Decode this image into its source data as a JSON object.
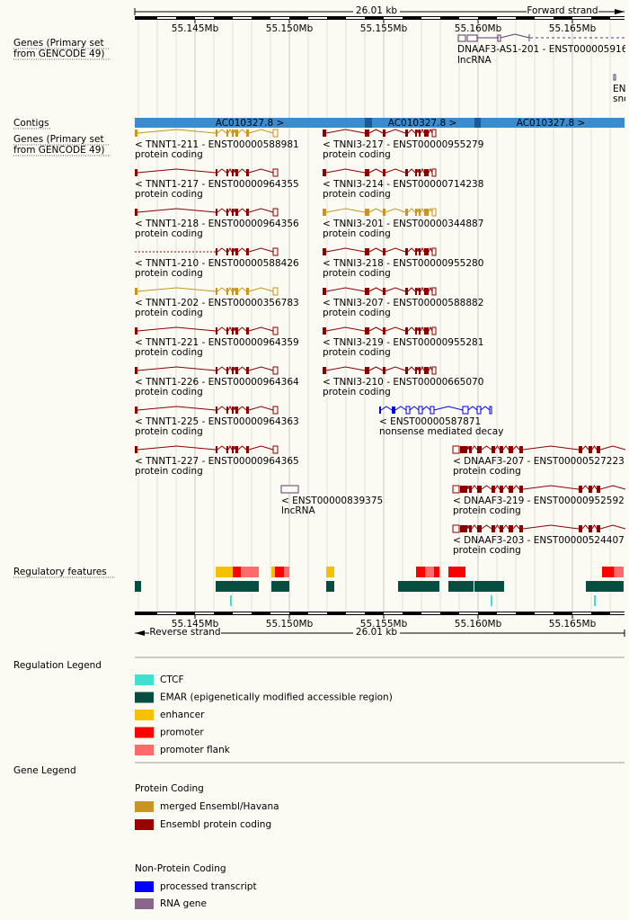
{
  "top_ruler": {
    "length": "26.01 kb",
    "strand": "Forward strand",
    "ticks": [
      "55.145Mb",
      "55.150Mb",
      "55.155Mb",
      "55.160Mb",
      "55.165Mb"
    ]
  },
  "tracks": {
    "genes_top": [
      "Genes (Primary set",
      "from GENCODE 49)"
    ],
    "contigs": "Contigs",
    "genes": [
      "Genes (Primary set",
      "from GENCODE 49)"
    ],
    "regulatory": "Regulatory features"
  },
  "forward_genes": [
    {
      "label": "DNAAF3-AS1-201 - ENST000005916",
      "biotype": "lncRNA"
    },
    {
      "label": "ENS",
      "biotype": "sno"
    }
  ],
  "contigs": [
    "AC010327.8 >",
    "AC010327.8 >",
    "AC010327.8 >"
  ],
  "transcripts": [
    {
      "label": "< TNNT1-211 - ENST00000588981",
      "biotype": "protein coding"
    },
    {
      "label": "< TNNT1-217 - ENST00000964355",
      "biotype": "protein coding"
    },
    {
      "label": "< TNNT1-218 - ENST00000964356",
      "biotype": "protein coding"
    },
    {
      "label": "< TNNT1-210 - ENST00000588426",
      "biotype": "protein coding"
    },
    {
      "label": "< TNNT1-202 - ENST00000356783",
      "biotype": "protein coding"
    },
    {
      "label": "< TNNT1-221 - ENST00000964359",
      "biotype": "protein coding"
    },
    {
      "label": "< TNNT1-226 - ENST00000964364",
      "biotype": "protein coding"
    },
    {
      "label": "< TNNT1-225 - ENST00000964363",
      "biotype": "protein coding"
    },
    {
      "label": "< TNNT1-227 - ENST00000964365",
      "biotype": "protein coding"
    },
    {
      "label": "< TNNI3-217 - ENST00000955279",
      "biotype": "protein coding"
    },
    {
      "label": "< TNNI3-214 - ENST00000714238",
      "biotype": "protein coding"
    },
    {
      "label": "< TNNI3-201 - ENST00000344887",
      "biotype": "protein coding"
    },
    {
      "label": "< TNNI3-218 - ENST00000955280",
      "biotype": "protein coding"
    },
    {
      "label": "< TNNI3-207 - ENST00000588882",
      "biotype": "protein coding"
    },
    {
      "label": "< TNNI3-219 - ENST00000955281",
      "biotype": "protein coding"
    },
    {
      "label": "< TNNI3-210 - ENST00000665070",
      "biotype": "protein coding"
    },
    {
      "label": "< ENST00000587871",
      "biotype": "nonsense mediated decay"
    },
    {
      "label": "< DNAAF3-207 - ENST00000527223",
      "biotype": "protein coding"
    },
    {
      "label": "< DNAAF3-219 - ENST00000952592",
      "biotype": "protein coding"
    },
    {
      "label": "< DNAAF3-203 - ENST00000524407",
      "biotype": "protein coding"
    },
    {
      "label": "< ENST00000839375",
      "biotype": "lncRNA"
    }
  ],
  "bottom_ruler": {
    "length": "26.01 kb",
    "strand": "Reverse strand",
    "ticks": [
      "55.145Mb",
      "55.150Mb",
      "55.155Mb",
      "55.160Mb",
      "55.165Mb"
    ]
  },
  "regulation_legend": {
    "title": "Regulation Legend",
    "items": [
      "CTCF",
      "EMAR (epigenetically modified accessible region)",
      "enhancer",
      "promoter",
      "promoter flank"
    ]
  },
  "gene_legend": {
    "title": "Gene Legend",
    "protein_coding": {
      "title": "Protein Coding",
      "items": [
        "merged Ensembl/Havana",
        "Ensembl protein coding"
      ]
    },
    "non_protein_coding": {
      "title": "Non-Protein Coding",
      "items": [
        "processed transcript",
        "RNA gene"
      ]
    }
  }
}
